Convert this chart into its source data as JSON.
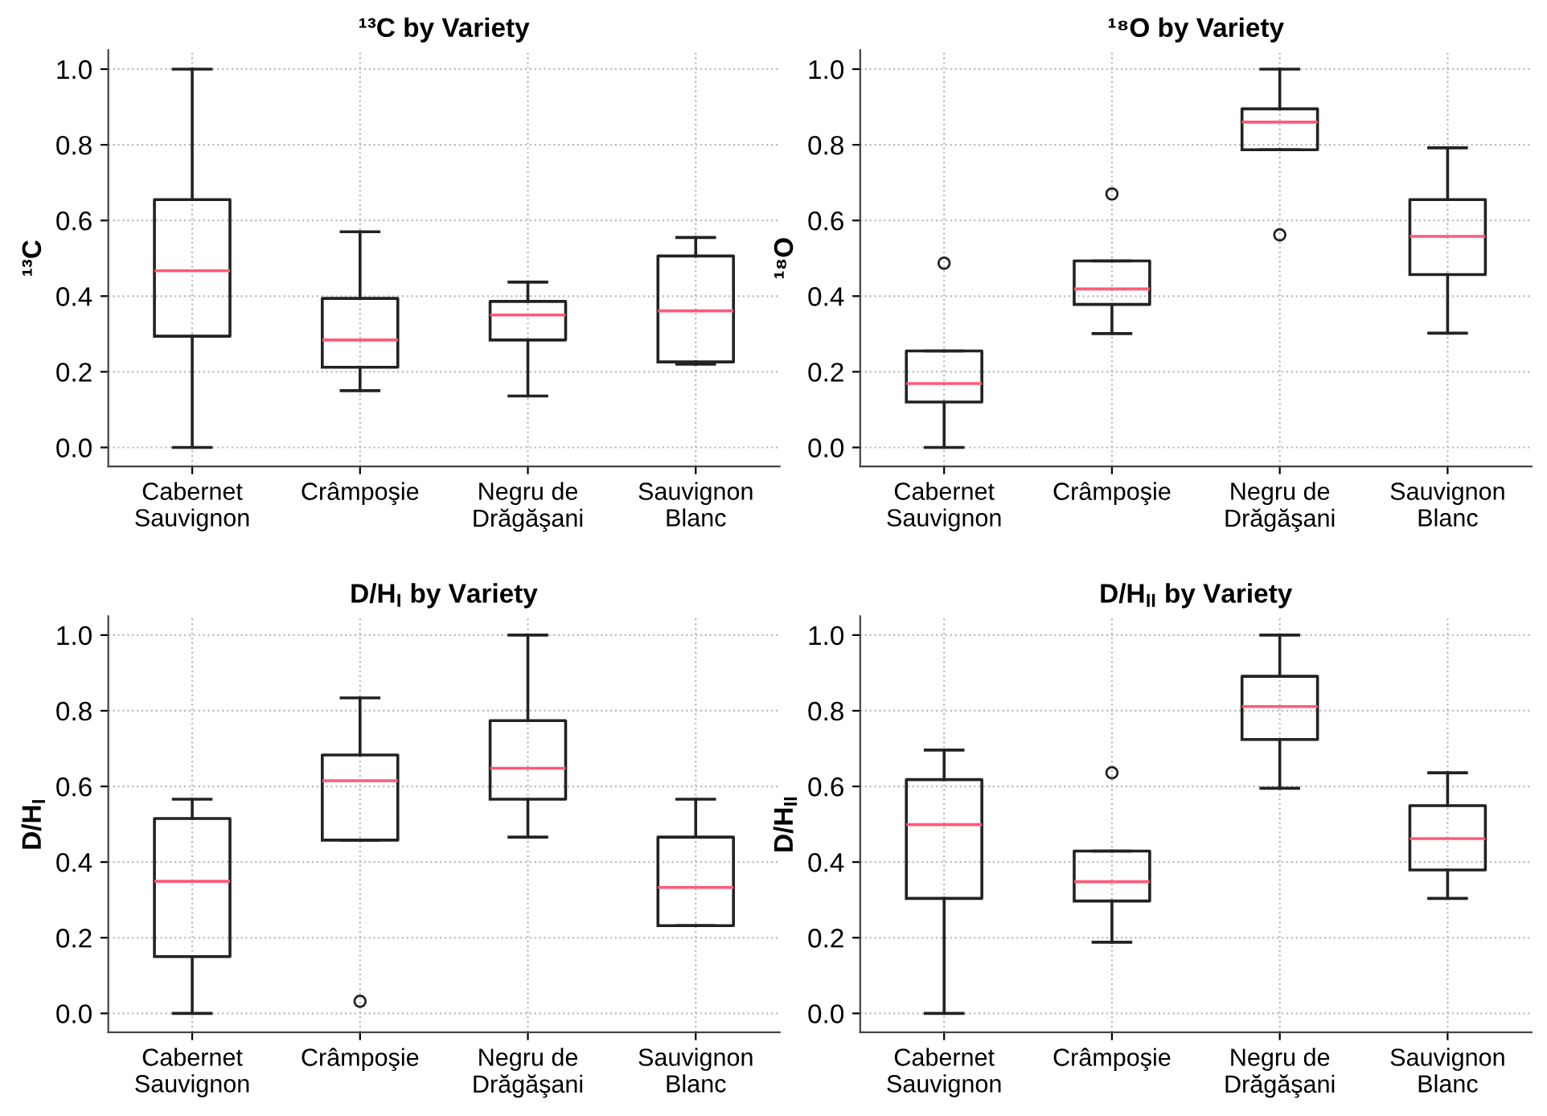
{
  "chart_data": [
    {
      "type": "box",
      "title": "¹³C by Variety",
      "ylabel": "¹³C",
      "categories": [
        "Cabernet\nSauvignon",
        "Crâmpoşie",
        "Negru de\nDrăgăşani",
        "Sauvignon\nBlanc"
      ],
      "ylim": [
        -0.05,
        1.05
      ],
      "yticks": [
        {
          "value": 0,
          "label": "0.0"
        },
        {
          "value": 0.2,
          "label": "0.2"
        },
        {
          "value": 0.4,
          "label": "0.4"
        },
        {
          "value": 0.6,
          "label": "0.6"
        },
        {
          "value": 0.8,
          "label": "0.8"
        },
        {
          "value": 1,
          "label": "1.0"
        }
      ],
      "grid": true,
      "series": [
        {
          "color": "#222222",
          "boxes": [
            {
              "low": 0,
              "q1": 0.294,
              "median": 0.467,
              "q3": 0.655,
              "high": 1.0
            },
            {
              "low": 0.15,
              "q1": 0.212,
              "median": 0.284,
              "q3": 0.394,
              "high": 0.57
            },
            {
              "low": 0.136,
              "q1": 0.284,
              "median": 0.35,
              "q3": 0.386,
              "high": 0.437
            },
            {
              "low": 0.22,
              "q1": 0.226,
              "median": 0.361,
              "q3": 0.506,
              "high": 0.555
            }
          ]
        }
      ]
    },
    {
      "type": "box",
      "title": "¹⁸O by Variety",
      "ylabel": "¹⁸O",
      "categories": [
        "Cabernet\nSauvignon",
        "Crâmpoşie",
        "Negru de\nDrăgăşani",
        "Sauvignon\nBlanc"
      ],
      "ylim": [
        -0.05,
        1.05
      ],
      "yticks": [
        {
          "value": 0,
          "label": "0.0"
        },
        {
          "value": 0.2,
          "label": "0.2"
        },
        {
          "value": 0.4,
          "label": "0.4"
        },
        {
          "value": 0.6,
          "label": "0.6"
        },
        {
          "value": 0.8,
          "label": "0.8"
        },
        {
          "value": 1,
          "label": "1.0"
        }
      ],
      "grid": true,
      "series": [
        {
          "color": "#222222",
          "boxes": [
            {
              "low": 0,
              "q1": 0.12,
              "median": 0.169,
              "q3": 0.255,
              "high": 0.255,
              "outliers": [
                0.487
              ]
            },
            {
              "low": 0.301,
              "q1": 0.378,
              "median": 0.419,
              "q3": 0.493,
              "high": 0.493,
              "outliers": [
                0.67
              ]
            },
            {
              "low": 0.787,
              "q1": 0.787,
              "median": 0.86,
              "q3": 0.895,
              "high": 1.0,
              "outliers": [
                0.562
              ]
            },
            {
              "low": 0.302,
              "q1": 0.457,
              "median": 0.558,
              "q3": 0.655,
              "high": 0.792
            }
          ]
        }
      ]
    },
    {
      "type": "box",
      "title": "D/H$_{I}$ by Variety",
      "ylabel": "D/H$_{I}$",
      "categories": [
        "Cabernet\nSauvignon",
        "Crâmpoşie",
        "Negru de\nDrăgăşani",
        "Sauvignon\nBlanc"
      ],
      "ylim": [
        -0.05,
        1.05
      ],
      "yticks": [
        {
          "value": 0,
          "label": "0.0"
        },
        {
          "value": 0.2,
          "label": "0.2"
        },
        {
          "value": 0.4,
          "label": "0.4"
        },
        {
          "value": 0.6,
          "label": "0.6"
        },
        {
          "value": 0.8,
          "label": "0.8"
        },
        {
          "value": 1,
          "label": "1.0"
        }
      ],
      "grid": true,
      "series": [
        {
          "color": "#222222",
          "boxes": [
            {
              "low": 0,
              "q1": 0.15,
              "median": 0.349,
              "q3": 0.515,
              "high": 0.566
            },
            {
              "low": 0.458,
              "q1": 0.458,
              "median": 0.615,
              "q3": 0.683,
              "high": 0.834,
              "outliers": [
                0.032
              ]
            },
            {
              "low": 0.466,
              "q1": 0.566,
              "median": 0.648,
              "q3": 0.774,
              "high": 1.0
            },
            {
              "low": 0.232,
              "q1": 0.232,
              "median": 0.333,
              "q3": 0.466,
              "high": 0.566
            }
          ]
        }
      ]
    },
    {
      "type": "box",
      "title": "D/H$_{II}$ by Variety",
      "ylabel": "D/H$_{II}$",
      "categories": [
        "Cabernet\nSauvignon",
        "Crâmpoşie",
        "Negru de\nDrăgăşani",
        "Sauvignon\nBlanc"
      ],
      "ylim": [
        -0.05,
        1.05
      ],
      "yticks": [
        {
          "value": 0,
          "label": "0.0"
        },
        {
          "value": 0.2,
          "label": "0.2"
        },
        {
          "value": 0.4,
          "label": "0.4"
        },
        {
          "value": 0.6,
          "label": "0.6"
        },
        {
          "value": 0.8,
          "label": "0.8"
        },
        {
          "value": 1,
          "label": "1.0"
        }
      ],
      "grid": true,
      "series": [
        {
          "color": "#222222",
          "boxes": [
            {
              "low": 0,
              "q1": 0.304,
              "median": 0.499,
              "q3": 0.618,
              "high": 0.696
            },
            {
              "low": 0.188,
              "q1": 0.297,
              "median": 0.348,
              "q3": 0.429,
              "high": 0.429,
              "outliers": [
                0.636
              ]
            },
            {
              "low": 0.595,
              "q1": 0.724,
              "median": 0.811,
              "q3": 0.891,
              "high": 1.0
            },
            {
              "low": 0.304,
              "q1": 0.379,
              "median": 0.462,
              "q3": 0.549,
              "high": 0.636
            }
          ]
        }
      ]
    }
  ]
}
